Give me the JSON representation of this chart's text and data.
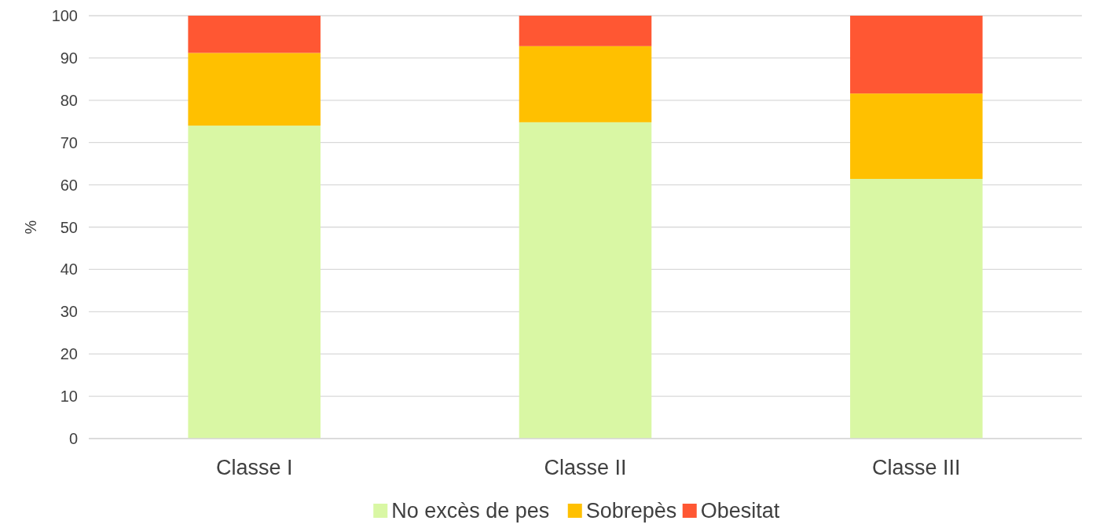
{
  "chart_data": {
    "type": "bar",
    "stacked": true,
    "ylabel": "%",
    "categories": [
      "Classe I",
      "Classe II",
      "Classe III"
    ],
    "series": [
      {
        "name": "No excès de pes",
        "color": "#d9f7a4",
        "values": [
          74.0,
          74.8,
          61.4
        ]
      },
      {
        "name": "Sobrepès",
        "color": "#ffc000",
        "values": [
          17.2,
          18.0,
          20.2
        ]
      },
      {
        "name": "Obesitat",
        "color": "#ff5733",
        "values": [
          8.8,
          7.2,
          18.4
        ]
      }
    ],
    "ylim": [
      0,
      100
    ],
    "yticks": [
      0,
      10,
      20,
      30,
      40,
      50,
      60,
      70,
      80,
      90,
      100
    ],
    "grid": "y",
    "legend": "bottom"
  }
}
